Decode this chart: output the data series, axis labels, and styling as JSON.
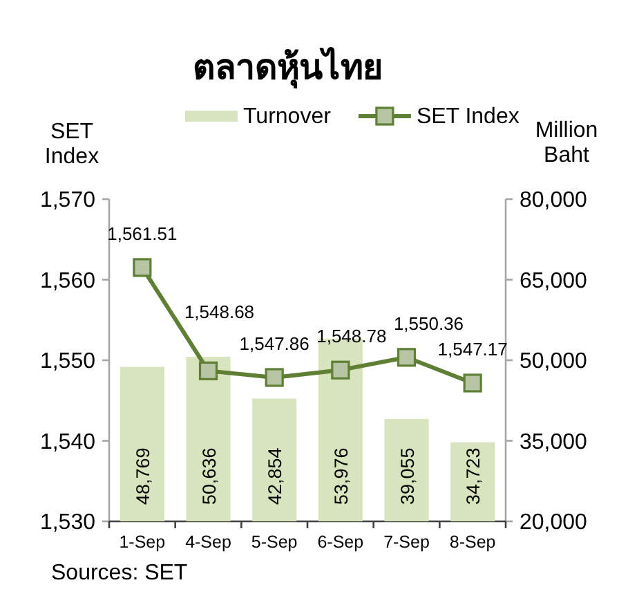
{
  "chart_data": {
    "type": "bar",
    "title": "ตลาดหุ้นไทย",
    "ylabel": "SET Index",
    "y2label": "Million Baht",
    "categories": [
      "1-Sep",
      "4-Sep",
      "5-Sep",
      "6-Sep",
      "7-Sep",
      "8-Sep"
    ],
    "series": [
      {
        "name": "Turnover",
        "axis": "y2",
        "color": "#d7e4bd",
        "values": [
          48769,
          50636,
          42854,
          53976,
          39055,
          34723
        ],
        "value_labels": [
          "48,769",
          "50,636",
          "42,854",
          "53,976",
          "39,055",
          "34,723"
        ]
      },
      {
        "name": "SET Index",
        "type": "line",
        "axis": "y",
        "color": "#5f7f35",
        "values": [
          1561.51,
          1548.68,
          1547.86,
          1548.78,
          1550.36,
          1547.17
        ],
        "value_labels": [
          "1,561.51",
          "1,548.68",
          "1,547.86",
          "1,548.78",
          "1,550.36",
          "1,547.17"
        ]
      }
    ],
    "ylim": [
      1530,
      1570
    ],
    "yticks": [
      {
        "value": 1530,
        "label": "1,530"
      },
      {
        "value": 1540,
        "label": "1,540"
      },
      {
        "value": 1550,
        "label": "1,550"
      },
      {
        "value": 1560,
        "label": "1,560"
      },
      {
        "value": 1570,
        "label": "1,570"
      }
    ],
    "y2lim": [
      20000,
      80000
    ],
    "y2ticks": [
      {
        "value": 20000,
        "label": "20,000"
      },
      {
        "value": 35000,
        "label": "35,000"
      },
      {
        "value": 50000,
        "label": "50,000"
      },
      {
        "value": 65000,
        "label": "65,000"
      },
      {
        "value": 80000,
        "label": "80,000"
      }
    ],
    "legend": "top",
    "marker": "square",
    "line_style": "solid",
    "grid": false,
    "annotations": [
      "Sources: SET"
    ]
  }
}
